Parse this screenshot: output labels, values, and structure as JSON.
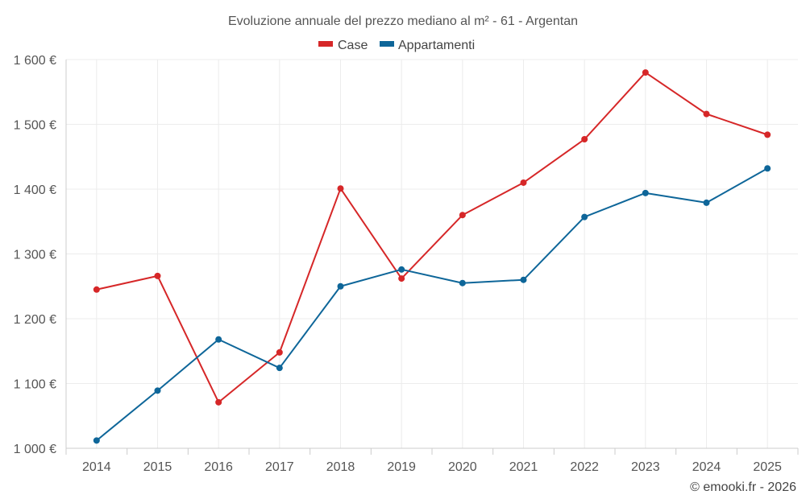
{
  "chart_data": {
    "type": "line",
    "title": "Evoluzione annuale del prezzo mediano al m² - 61 - Argentan",
    "xlabel": "",
    "ylabel": "",
    "x": [
      "2014",
      "2015",
      "2016",
      "2017",
      "2018",
      "2019",
      "2020",
      "2021",
      "2022",
      "2023",
      "2024",
      "2025"
    ],
    "ylim": [
      1000,
      1600
    ],
    "yticks": [
      1000,
      1100,
      1200,
      1300,
      1400,
      1500,
      1600
    ],
    "ytick_labels": [
      "1 000 €",
      "1 100 €",
      "1 200 €",
      "1 300 €",
      "1 400 €",
      "1 500 €",
      "1 600 €"
    ],
    "legend_position": "top-center",
    "grid": true,
    "series": [
      {
        "name": "Case",
        "color": "#d62728",
        "values": [
          1245,
          1266,
          1071,
          1148,
          1401,
          1262,
          1360,
          1410,
          1477,
          1580,
          1516,
          1484
        ]
      },
      {
        "name": "Appartamenti",
        "color": "#0e6699",
        "values": [
          1012,
          1089,
          1168,
          1124,
          1250,
          1276,
          1255,
          1260,
          1357,
          1394,
          1379,
          1432
        ]
      }
    ]
  },
  "credit": "© emooki.fr - 2026"
}
